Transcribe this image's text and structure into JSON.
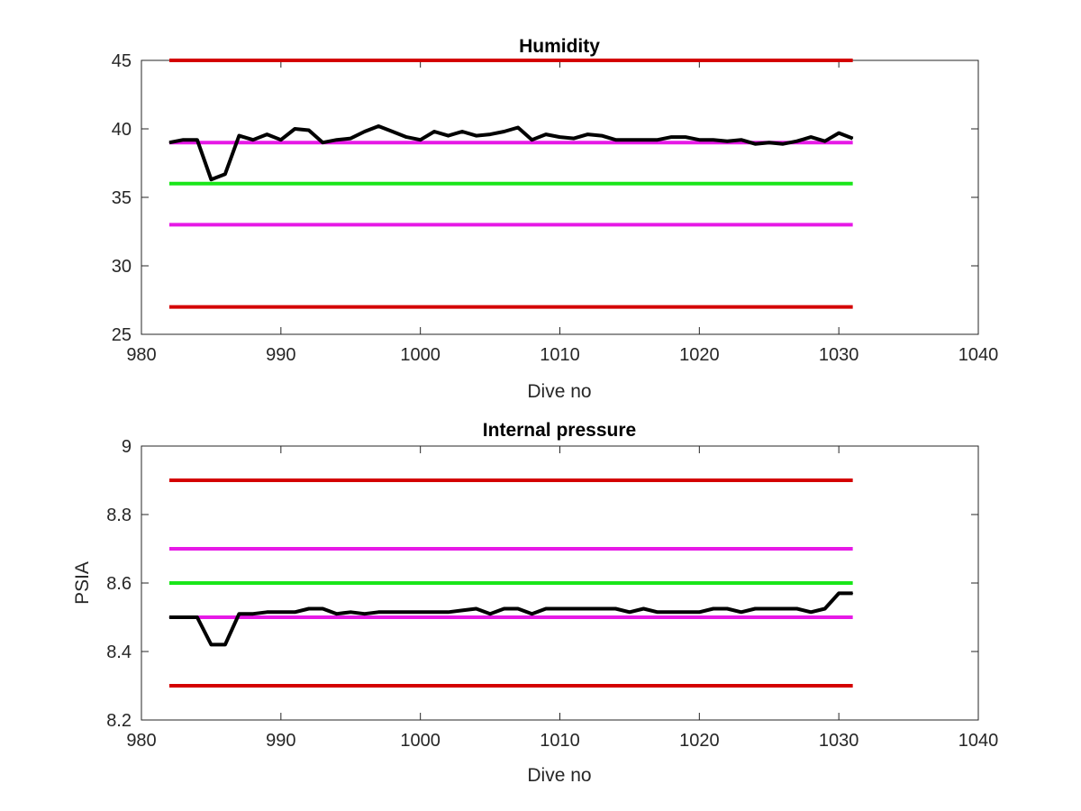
{
  "chart_data": [
    {
      "type": "line",
      "title": "Humidity",
      "xlabel": "Dive no",
      "ylabel": "",
      "xlim": [
        980,
        1040
      ],
      "ylim": [
        25,
        45
      ],
      "xticks": [
        "980",
        "990",
        "1000",
        "1010",
        "1020",
        "1030",
        "1040"
      ],
      "yticks": [
        "25",
        "30",
        "35",
        "40",
        "45"
      ],
      "grid": false,
      "reference_lines": [
        {
          "y": 45,
          "x": [
            982,
            1031
          ],
          "color": "#d40000"
        },
        {
          "y": 39,
          "x": [
            982,
            1031
          ],
          "color": "#e619e6"
        },
        {
          "y": 36,
          "x": [
            982,
            1031
          ],
          "color": "#19e619"
        },
        {
          "y": 33,
          "x": [
            982,
            1031
          ],
          "color": "#e619e6"
        },
        {
          "y": 27,
          "x": [
            982,
            1031
          ],
          "color": "#d40000"
        }
      ],
      "series": [
        {
          "color": "#000000",
          "x": [
            982,
            983,
            984,
            985,
            986,
            987,
            988,
            989,
            990,
            991,
            992,
            993,
            994,
            995,
            996,
            997,
            998,
            999,
            1000,
            1001,
            1002,
            1003,
            1004,
            1005,
            1006,
            1007,
            1008,
            1009,
            1010,
            1011,
            1012,
            1013,
            1014,
            1015,
            1016,
            1017,
            1018,
            1019,
            1020,
            1021,
            1022,
            1023,
            1024,
            1025,
            1026,
            1027,
            1028,
            1029,
            1030,
            1031
          ],
          "values": [
            39.0,
            39.2,
            39.2,
            36.3,
            36.7,
            39.5,
            39.2,
            39.6,
            39.2,
            40.0,
            39.9,
            39.0,
            39.2,
            39.3,
            39.8,
            40.2,
            39.8,
            39.4,
            39.2,
            39.8,
            39.5,
            39.8,
            39.5,
            39.6,
            39.8,
            40.1,
            39.2,
            39.6,
            39.4,
            39.3,
            39.6,
            39.5,
            39.2,
            39.2,
            39.2,
            39.2,
            39.4,
            39.4,
            39.2,
            39.2,
            39.1,
            39.2,
            38.9,
            39.0,
            38.9,
            39.1,
            39.4,
            39.1,
            39.7,
            39.3
          ]
        }
      ]
    },
    {
      "type": "line",
      "title": "Internal pressure",
      "xlabel": "Dive no",
      "ylabel": "PSIA",
      "xlim": [
        980,
        1040
      ],
      "ylim": [
        8.2,
        9
      ],
      "xticks": [
        "980",
        "990",
        "1000",
        "1010",
        "1020",
        "1030",
        "1040"
      ],
      "yticks": [
        "8.2",
        "8.4",
        "8.6",
        "8.8",
        "9"
      ],
      "grid": false,
      "reference_lines": [
        {
          "y": 8.9,
          "x": [
            982,
            1031
          ],
          "color": "#d40000"
        },
        {
          "y": 8.7,
          "x": [
            982,
            1031
          ],
          "color": "#e619e6"
        },
        {
          "y": 8.6,
          "x": [
            982,
            1031
          ],
          "color": "#19e619"
        },
        {
          "y": 8.5,
          "x": [
            982,
            1031
          ],
          "color": "#e619e6"
        },
        {
          "y": 8.3,
          "x": [
            982,
            1031
          ],
          "color": "#d40000"
        }
      ],
      "series": [
        {
          "color": "#000000",
          "x": [
            982,
            983,
            984,
            985,
            986,
            987,
            988,
            989,
            990,
            991,
            992,
            993,
            994,
            995,
            996,
            997,
            998,
            999,
            1000,
            1001,
            1002,
            1003,
            1004,
            1005,
            1006,
            1007,
            1008,
            1009,
            1010,
            1011,
            1012,
            1013,
            1014,
            1015,
            1016,
            1017,
            1018,
            1019,
            1020,
            1021,
            1022,
            1023,
            1024,
            1025,
            1026,
            1027,
            1028,
            1029,
            1030,
            1031
          ],
          "values": [
            8.5,
            8.5,
            8.5,
            8.42,
            8.42,
            8.51,
            8.51,
            8.515,
            8.515,
            8.515,
            8.525,
            8.525,
            8.51,
            8.515,
            8.51,
            8.515,
            8.515,
            8.515,
            8.515,
            8.515,
            8.515,
            8.52,
            8.525,
            8.51,
            8.525,
            8.525,
            8.51,
            8.525,
            8.525,
            8.525,
            8.525,
            8.525,
            8.525,
            8.515,
            8.525,
            8.515,
            8.515,
            8.515,
            8.515,
            8.525,
            8.525,
            8.515,
            8.525,
            8.525,
            8.525,
            8.525,
            8.515,
            8.525,
            8.57,
            8.57
          ]
        }
      ]
    }
  ]
}
